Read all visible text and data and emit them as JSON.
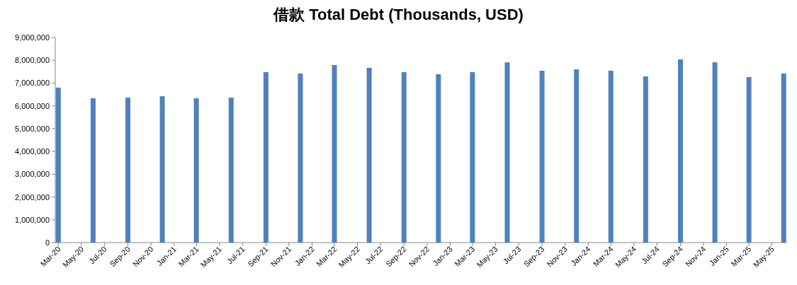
{
  "chart_data": {
    "type": "bar",
    "title": "借款 Total Debt (Thousands, USD)",
    "x": [
      "2020-03",
      "2020-06",
      "2020-09",
      "2020-12",
      "2021-03",
      "2021-06",
      "2021-09",
      "2021-12",
      "2022-03",
      "2022-06",
      "2022-09",
      "2022-12",
      "2023-03",
      "2023-06",
      "2023-09",
      "2023-12",
      "2024-03",
      "2024-06",
      "2024-09",
      "2024-12",
      "2025-03",
      "2025-06"
    ],
    "values": [
      6800000,
      6330000,
      6360000,
      6420000,
      6330000,
      6360000,
      7480000,
      7420000,
      7790000,
      7670000,
      7480000,
      7390000,
      7480000,
      7910000,
      7540000,
      7600000,
      7540000,
      7290000,
      8040000,
      7910000,
      7260000,
      7420000
    ],
    "color": "#4f81bd",
    "ylim": [
      0,
      9000000
    ],
    "yticks": [
      {
        "value": 0,
        "label": "0"
      },
      {
        "value": 1000000,
        "label": "1,000,000"
      },
      {
        "value": 2000000,
        "label": "2,000,000"
      },
      {
        "value": 3000000,
        "label": "3,000,000"
      },
      {
        "value": 4000000,
        "label": "4,000,000"
      },
      {
        "value": 5000000,
        "label": "5,000,000"
      },
      {
        "value": 6000000,
        "label": "6,000,000"
      },
      {
        "value": 7000000,
        "label": "7,000,000"
      },
      {
        "value": 8000000,
        "label": "8,000,000"
      },
      {
        "value": 9000000,
        "label": "9,000,000"
      }
    ],
    "xlim": [
      "2020-02-22",
      "2025-06-08"
    ],
    "xticks": [
      {
        "value": "2020-03",
        "label": "Mar-20"
      },
      {
        "value": "2020-05",
        "label": "May-20"
      },
      {
        "value": "2020-07",
        "label": "Jul-20"
      },
      {
        "value": "2020-09",
        "label": "Sep-20"
      },
      {
        "value": "2020-11",
        "label": "Nov-20"
      },
      {
        "value": "2021-01",
        "label": "Jan-21"
      },
      {
        "value": "2021-03",
        "label": "Mar-21"
      },
      {
        "value": "2021-05",
        "label": "May-21"
      },
      {
        "value": "2021-07",
        "label": "Jul-21"
      },
      {
        "value": "2021-09",
        "label": "Sep-21"
      },
      {
        "value": "2021-11",
        "label": "Nov-21"
      },
      {
        "value": "2022-01",
        "label": "Jan-22"
      },
      {
        "value": "2022-03",
        "label": "Mar-22"
      },
      {
        "value": "2022-05",
        "label": "May-22"
      },
      {
        "value": "2022-07",
        "label": "Jul-22"
      },
      {
        "value": "2022-09",
        "label": "Sep-22"
      },
      {
        "value": "2022-11",
        "label": "Nov-22"
      },
      {
        "value": "2023-01",
        "label": "Jan-23"
      },
      {
        "value": "2023-03",
        "label": "Mar-23"
      },
      {
        "value": "2023-05",
        "label": "May-23"
      },
      {
        "value": "2023-07",
        "label": "Jul-23"
      },
      {
        "value": "2023-09",
        "label": "Sep-23"
      },
      {
        "value": "2023-11",
        "label": "Nov-23"
      },
      {
        "value": "2024-01",
        "label": "Jan-24"
      },
      {
        "value": "2024-03",
        "label": "Mar-24"
      },
      {
        "value": "2024-05",
        "label": "May-24"
      },
      {
        "value": "2024-07",
        "label": "Jul-24"
      },
      {
        "value": "2024-09",
        "label": "Sep-24"
      },
      {
        "value": "2024-11",
        "label": "Nov-24"
      },
      {
        "value": "2025-01",
        "label": "Jan-25"
      },
      {
        "value": "2025-03",
        "label": "Mar-25"
      },
      {
        "value": "2025-05",
        "label": "May-25"
      }
    ]
  }
}
